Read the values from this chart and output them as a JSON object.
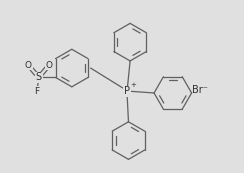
{
  "bg_color": "#e0e0e0",
  "line_color": "#606060",
  "text_color": "#303030",
  "line_width": 0.9,
  "figsize": [
    2.44,
    1.73
  ],
  "dpi": 100,
  "font_size": 6.5,
  "br_label": "Br⁻",
  "p_label": "P",
  "s_label": "S",
  "f_label": "F",
  "o_label": "O",
  "p_charge": "+",
  "xlim": [
    -2.2,
    5.0
  ],
  "ylim": [
    -2.5,
    2.8
  ]
}
